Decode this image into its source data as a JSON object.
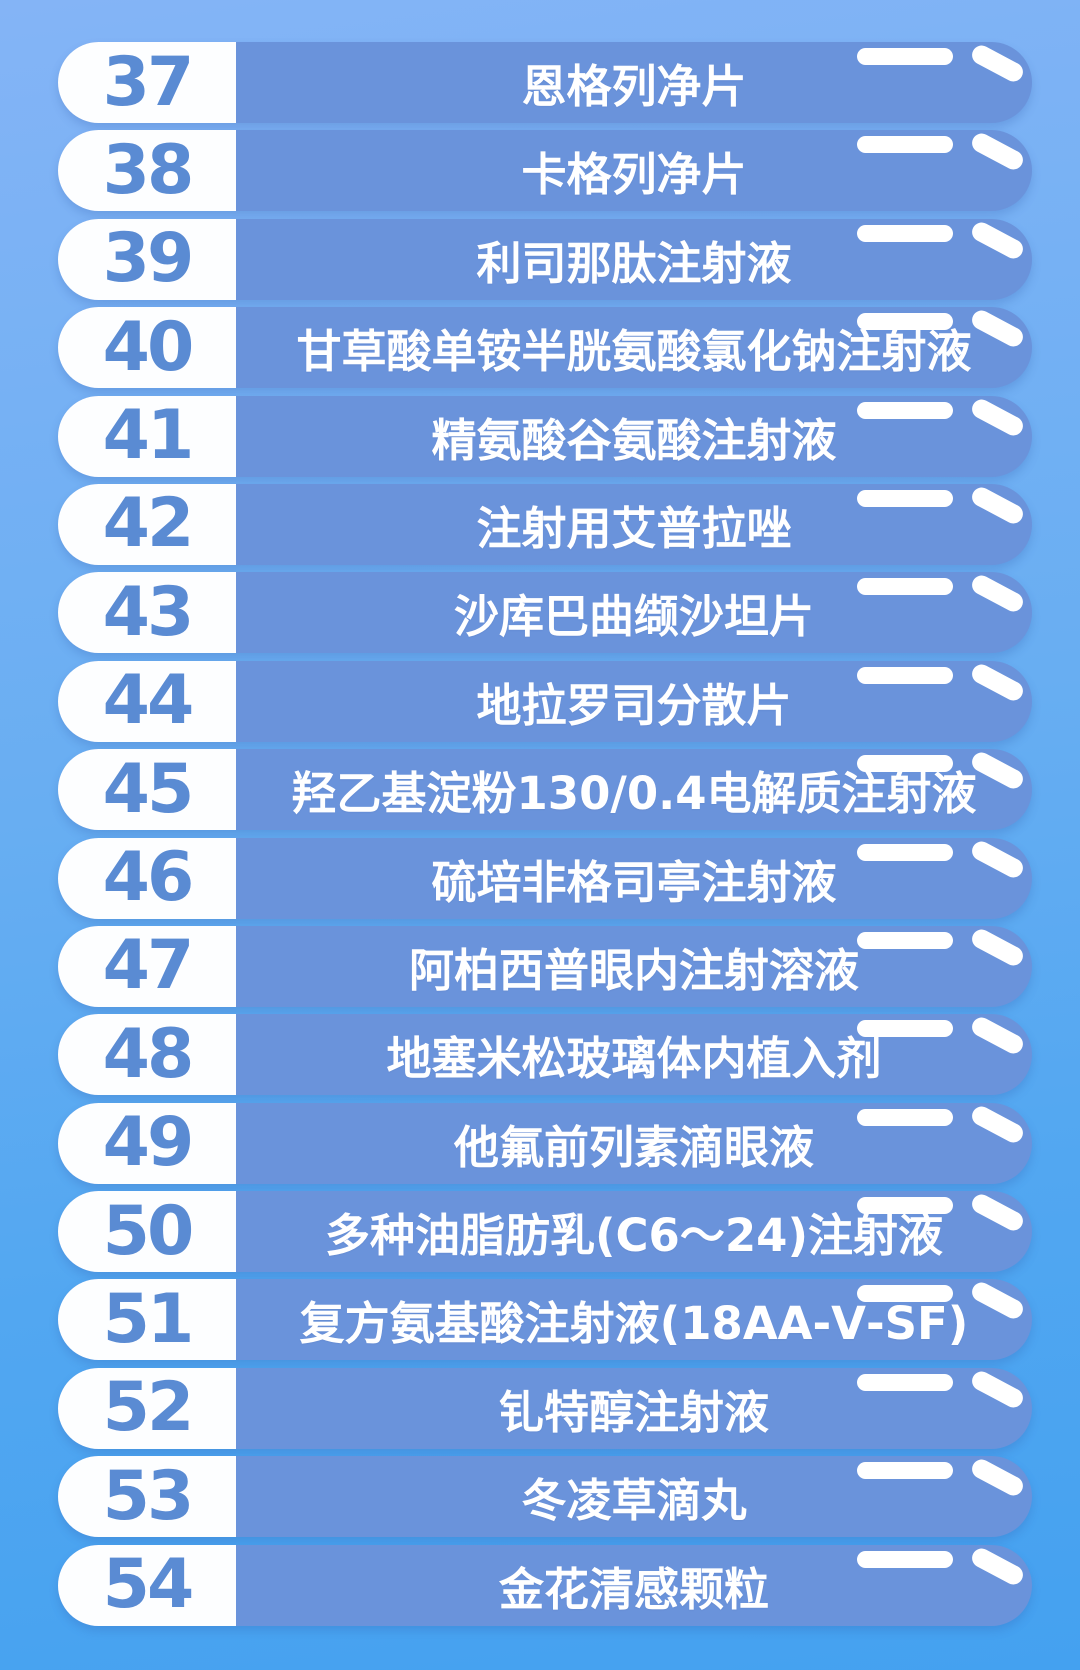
{
  "colors": {
    "background_top": "#84B4F6",
    "background_bottom": "#44A1F0",
    "bar_fill": "#6A93DB",
    "number_pill_fill": "#FDFEFF",
    "number_text": "#5A8BD3",
    "label_text": "#FFFFFF",
    "shine": "#FFFFFF"
  },
  "list": {
    "items": [
      {
        "number": "37",
        "name": "恩格列净片"
      },
      {
        "number": "38",
        "name": "卡格列净片"
      },
      {
        "number": "39",
        "name": "利司那肽注射液"
      },
      {
        "number": "40",
        "name": "甘草酸单铵半胱氨酸氯化钠注射液"
      },
      {
        "number": "41",
        "name": "精氨酸谷氨酸注射液"
      },
      {
        "number": "42",
        "name": "注射用艾普拉唑"
      },
      {
        "number": "43",
        "name": "沙库巴曲缬沙坦片"
      },
      {
        "number": "44",
        "name": "地拉罗司分散片"
      },
      {
        "number": "45",
        "name": "羟乙基淀粉130/0.4电解质注射液"
      },
      {
        "number": "46",
        "name": "硫培非格司亭注射液"
      },
      {
        "number": "47",
        "name": "阿柏西普眼内注射溶液"
      },
      {
        "number": "48",
        "name": "地塞米松玻璃体内植入剂"
      },
      {
        "number": "49",
        "name": "他氟前列素滴眼液"
      },
      {
        "number": "50",
        "name": "多种油脂肪乳(C6～24)注射液"
      },
      {
        "number": "51",
        "name": "复方氨基酸注射液(18AA-Ⅴ-SF)"
      },
      {
        "number": "52",
        "name": "钆特醇注射液"
      },
      {
        "number": "53",
        "name": "冬凌草滴丸"
      },
      {
        "number": "54",
        "name": "金花清感颗粒"
      }
    ]
  }
}
